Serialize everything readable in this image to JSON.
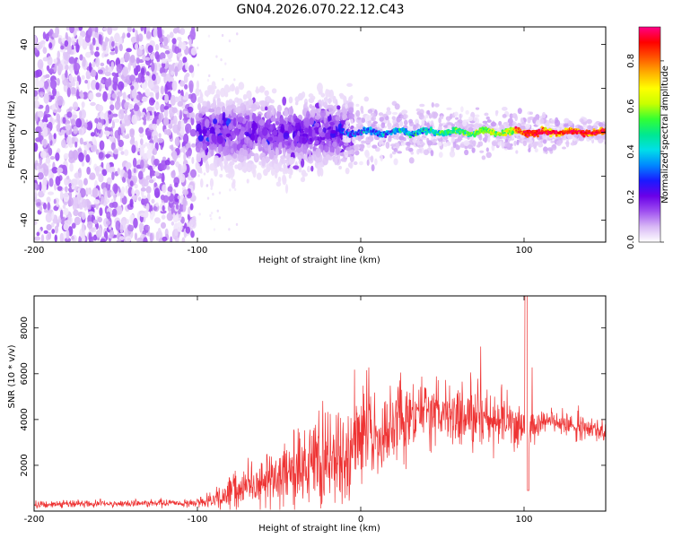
{
  "title": "GN04.2026.070.22.12.C43",
  "chart_data": [
    {
      "type": "heatmap",
      "xlabel": "Height of straight line (km)",
      "ylabel": "Frequency (Hz)",
      "xlim": [
        -200,
        150
      ],
      "ylim": [
        -50,
        48
      ],
      "xticks": [
        -200,
        -100,
        0,
        100
      ],
      "yticks": [
        -40,
        -20,
        0,
        20,
        40
      ],
      "colorbar": {
        "label": "Normalized spectral amplitude",
        "range": [
          0,
          0.95
        ],
        "ticks": [
          0.0,
          0.2,
          0.4,
          0.6,
          0.8
        ],
        "colors": [
          "#ffffff",
          "#d8b8f5",
          "#9f50f0",
          "#6a00e8",
          "#1a1aff",
          "#0088ff",
          "#00dfe8",
          "#00e890",
          "#33ff33",
          "#c8ff00",
          "#ffff00",
          "#ffb000",
          "#ff5500",
          "#ff0000",
          "#ff0088"
        ]
      },
      "regions": [
        {
          "name": "noise",
          "x": [
            -200,
            -100
          ],
          "freq_band": [
            -50,
            48
          ],
          "amplitude": 0.05
        },
        {
          "name": "onset",
          "x": [
            -100,
            -20
          ],
          "freq_band": [
            -20,
            15
          ],
          "amplitude": 0.15
        },
        {
          "name": "tone",
          "x": [
            -10,
            150
          ],
          "freq_center": 0,
          "amplitude_range": [
            0.3,
            0.9
          ]
        }
      ]
    },
    {
      "type": "line",
      "xlabel": "Height of straight line (km)",
      "ylabel": "SNR (10 * v/v)",
      "xlim": [
        -200,
        150
      ],
      "ylim": [
        0,
        9400
      ],
      "xticks": [
        -200,
        -100,
        0,
        100
      ],
      "yticks": [
        2000,
        4000,
        6000,
        8000
      ],
      "color": "#ee3333",
      "series_envelope": {
        "x": [
          -200,
          -100,
          -90,
          -80,
          -70,
          -60,
          -50,
          -40,
          -30,
          -20,
          -10,
          0,
          10,
          20,
          30,
          40,
          50,
          60,
          70,
          80,
          90,
          100,
          110,
          120,
          130,
          140,
          150
        ],
        "y": [
          300,
          350,
          500,
          800,
          1000,
          1300,
          1600,
          1900,
          2000,
          2300,
          2800,
          3100,
          3000,
          3800,
          4300,
          4400,
          4200,
          4000,
          4200,
          4000,
          3900,
          3600,
          3900,
          3900,
          3700,
          3600,
          3500
        ],
        "amp": [
          150,
          150,
          400,
          700,
          900,
          1000,
          1200,
          1400,
          1500,
          1800,
          2000,
          2100,
          1900,
          1500,
          1400,
          1300,
          1200,
          1200,
          1300,
          1200,
          1100,
          900,
          600,
          500,
          500,
          400,
          400
        ]
      }
    }
  ]
}
